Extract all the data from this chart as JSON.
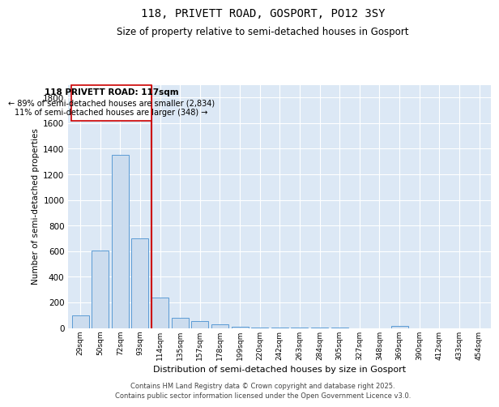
{
  "title": "118, PRIVETT ROAD, GOSPORT, PO12 3SY",
  "subtitle": "Size of property relative to semi-detached houses in Gosport",
  "xlabel": "Distribution of semi-detached houses by size in Gosport",
  "ylabel": "Number of semi-detached properties",
  "categories": [
    "29sqm",
    "50sqm",
    "72sqm",
    "93sqm",
    "114sqm",
    "135sqm",
    "157sqm",
    "178sqm",
    "199sqm",
    "220sqm",
    "242sqm",
    "263sqm",
    "284sqm",
    "305sqm",
    "327sqm",
    "348sqm",
    "369sqm",
    "390sqm",
    "412sqm",
    "433sqm",
    "454sqm"
  ],
  "values": [
    100,
    605,
    1350,
    700,
    240,
    80,
    55,
    28,
    12,
    4,
    2,
    2,
    1,
    1,
    0,
    0,
    15,
    0,
    0,
    0,
    0
  ],
  "bar_color": "#ccdcee",
  "bar_edge_color": "#5b9bd5",
  "marker_bin_index": 4,
  "marker_color": "#cc0000",
  "annotation_title": "118 PRIVETT ROAD: 117sqm",
  "annotation_line1": "← 89% of semi-detached houses are smaller (2,834)",
  "annotation_line2": "11% of semi-detached houses are larger (348) →",
  "ylim": [
    0,
    1900
  ],
  "yticks": [
    0,
    200,
    400,
    600,
    800,
    1000,
    1200,
    1400,
    1600,
    1800
  ],
  "plot_background": "#dce8f5",
  "footer_line1": "Contains HM Land Registry data © Crown copyright and database right 2025.",
  "footer_line2": "Contains public sector information licensed under the Open Government Licence v3.0.",
  "title_fontsize": 10,
  "subtitle_fontsize": 8.5,
  "annotation_title_fontsize": 7.5,
  "annotation_text_fontsize": 7.0,
  "footer_fontsize": 6.0,
  "ylabel_fontsize": 7.5,
  "xlabel_fontsize": 8.0,
  "ytick_fontsize": 7.5,
  "xtick_fontsize": 6.5
}
